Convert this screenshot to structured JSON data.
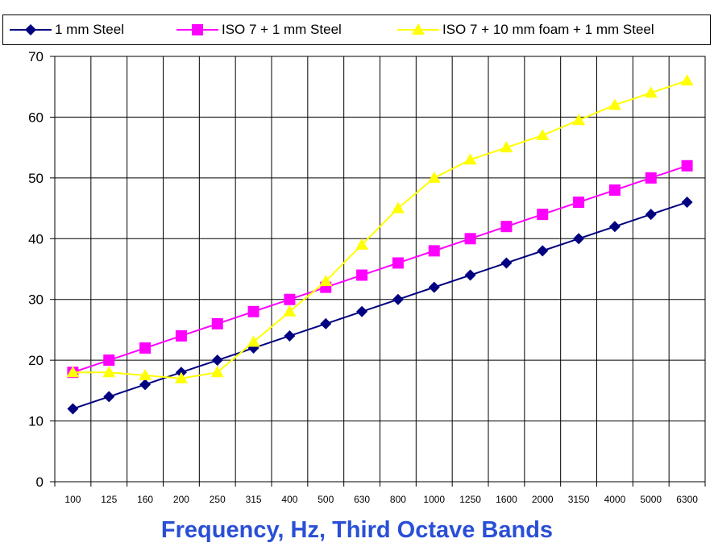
{
  "chart_data": {
    "type": "line",
    "categories": [
      "100",
      "125",
      "160",
      "200",
      "250",
      "315",
      "400",
      "500",
      "630",
      "800",
      "1000",
      "1250",
      "1600",
      "2000",
      "3150",
      "4000",
      "5000",
      "6300"
    ],
    "series": [
      {
        "name": "1 mm Steel",
        "color": "#000080",
        "marker": "diamond",
        "values": [
          12,
          14,
          16,
          18,
          20,
          22,
          24,
          26,
          28,
          30,
          32,
          34,
          36,
          38,
          40,
          42,
          44,
          46
        ]
      },
      {
        "name": "ISO 7 + 1 mm Steel",
        "color": "#ff00ff",
        "marker": "square",
        "values": [
          18,
          20,
          22,
          24,
          26,
          28,
          30,
          32,
          34,
          36,
          38,
          40,
          42,
          44,
          46,
          48,
          50,
          52
        ]
      },
      {
        "name": "ISO 7 + 10 mm foam + 1 mm Steel",
        "color": "#ffff00",
        "marker": "triangle",
        "values": [
          18,
          18,
          17.5,
          17,
          18,
          23,
          28,
          33,
          39,
          45,
          50,
          53,
          55,
          57,
          59.5,
          62,
          64,
          66
        ]
      }
    ],
    "title": "",
    "xlabel": "Frequency, Hz, Third Octave Bands",
    "xlabel_color": "#2a4fd6",
    "ylabel": "",
    "ylim": [
      0,
      70
    ],
    "yticks": [
      0,
      10,
      20,
      30,
      40,
      50,
      60,
      70
    ],
    "grid": true,
    "legend_position": "top"
  }
}
